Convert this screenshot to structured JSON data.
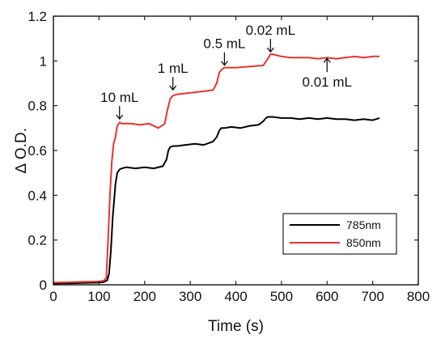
{
  "chart_data": {
    "type": "line",
    "xlabel": "Time (s)",
    "ylabel": "∆ O.D.",
    "xlim": [
      0,
      800
    ],
    "ylim": [
      0,
      1.2
    ],
    "xticks": [
      0,
      100,
      200,
      300,
      400,
      500,
      600,
      700,
      800
    ],
    "yticks": [
      0,
      0.2,
      0.4,
      0.6,
      0.8,
      1,
      1.2
    ],
    "xtick_labels": [
      "0",
      "100",
      "200",
      "300",
      "400",
      "500",
      "600",
      "700",
      "800"
    ],
    "ytick_labels": [
      "0",
      "0.2",
      "0.4",
      "0.6",
      "0.8",
      "1",
      "1.2"
    ],
    "grid": false,
    "legend_position": "bottom-right",
    "series": [
      {
        "name": "785nm",
        "color": "#000000",
        "x": [
          0,
          20,
          40,
          60,
          80,
          100,
          110,
          118,
          122,
          126,
          130,
          136,
          140,
          145,
          150,
          160,
          180,
          200,
          220,
          240,
          248,
          252,
          256,
          262,
          270,
          290,
          310,
          330,
          350,
          358,
          364,
          368,
          375,
          390,
          410,
          430,
          450,
          460,
          466,
          470,
          480,
          500,
          520,
          540,
          560,
          580,
          600,
          620,
          640,
          660,
          680,
          700,
          715
        ],
        "y": [
          0.005,
          0.006,
          0.007,
          0.008,
          0.009,
          0.01,
          0.012,
          0.02,
          0.05,
          0.15,
          0.3,
          0.45,
          0.5,
          0.515,
          0.52,
          0.525,
          0.52,
          0.525,
          0.52,
          0.53,
          0.56,
          0.6,
          0.615,
          0.62,
          0.62,
          0.625,
          0.63,
          0.625,
          0.64,
          0.66,
          0.69,
          0.7,
          0.7,
          0.705,
          0.7,
          0.71,
          0.715,
          0.73,
          0.745,
          0.75,
          0.75,
          0.745,
          0.745,
          0.74,
          0.745,
          0.74,
          0.745,
          0.74,
          0.74,
          0.735,
          0.74,
          0.735,
          0.745
        ]
      },
      {
        "name": "850nm",
        "color": "#e8332f",
        "x": [
          0,
          20,
          40,
          60,
          80,
          100,
          110,
          116,
          120,
          124,
          128,
          132,
          136,
          140,
          145,
          150,
          170,
          190,
          210,
          230,
          244,
          250,
          256,
          262,
          270,
          290,
          310,
          330,
          350,
          358,
          364,
          368,
          375,
          400,
          430,
          460,
          470,
          476,
          480,
          500,
          520,
          540,
          560,
          580,
          600,
          620,
          640,
          660,
          680,
          700,
          715
        ],
        "y": [
          0.01,
          0.011,
          0.012,
          0.013,
          0.014,
          0.015,
          0.018,
          0.03,
          0.2,
          0.4,
          0.55,
          0.63,
          0.66,
          0.71,
          0.725,
          0.72,
          0.72,
          0.715,
          0.72,
          0.7,
          0.72,
          0.78,
          0.83,
          0.845,
          0.85,
          0.855,
          0.86,
          0.865,
          0.87,
          0.9,
          0.95,
          0.96,
          0.97,
          0.97,
          0.975,
          0.98,
          1.01,
          1.03,
          1.03,
          1.02,
          1.015,
          1.015,
          1.015,
          1.01,
          1.015,
          1.01,
          1.015,
          1.02,
          1.015,
          1.02,
          1.02
        ]
      }
    ],
    "annotations": [
      {
        "text": "10 mL",
        "x": 145,
        "y": 0.73
      },
      {
        "text": "1 mL",
        "x": 262,
        "y": 0.86
      },
      {
        "text": "0.5 mL",
        "x": 375,
        "y": 0.97
      },
      {
        "text": "0.02 mL",
        "x": 476,
        "y": 1.03
      },
      {
        "text": "0.01 mL",
        "x": 600,
        "y": 1.015
      }
    ]
  }
}
